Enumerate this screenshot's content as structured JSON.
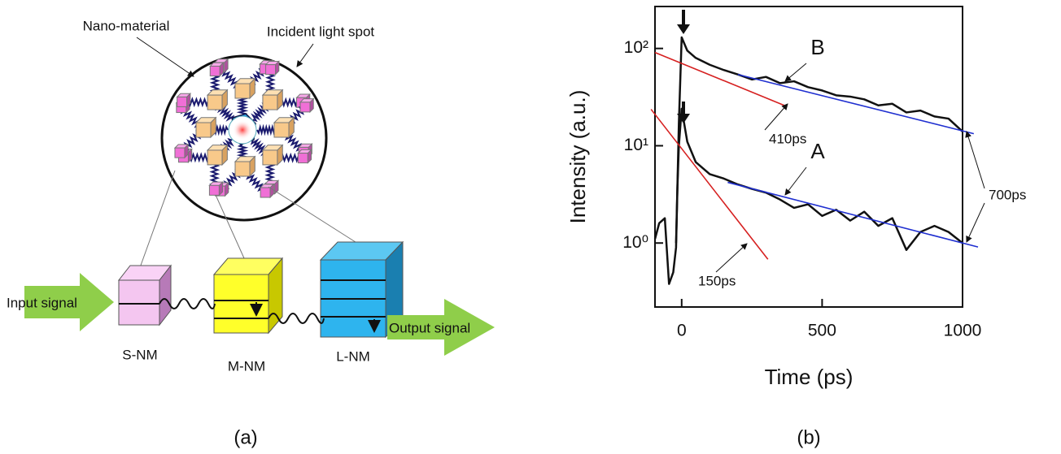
{
  "panel_a": {
    "nano_material": "Nano-material",
    "incident_light_spot": "Incident light spot",
    "input_signal": "Input signal",
    "output_signal": "Output signal",
    "s_nm": "S-NM",
    "m_nm": "M-NM",
    "l_nm": "L-NM",
    "label": "(a)"
  },
  "panel_b": {
    "label": "(b)"
  },
  "chart_data": {
    "type": "line",
    "x_label": "Time (ps)",
    "y_label": "Intensity (a.u.)",
    "log_y": true,
    "x": [
      -95,
      -80,
      -60,
      -45,
      -30,
      -20,
      -15,
      -10,
      0,
      20,
      50,
      100,
      150,
      200,
      250,
      300,
      350,
      400,
      450,
      500,
      550,
      600,
      650,
      700,
      750,
      800,
      850,
      900,
      950,
      1000
    ],
    "series": [
      {
        "name": "B",
        "color": "#111111",
        "values": [
          null,
          null,
          null,
          null,
          null,
          1.0,
          4,
          17,
          130,
          95,
          80,
          68,
          60,
          54,
          48,
          51,
          44,
          46,
          40,
          37,
          33,
          32,
          30,
          26,
          27,
          22,
          23,
          20,
          19,
          14
        ]
      },
      {
        "name": "A",
        "color": "#111111",
        "values": [
          1.1,
          1.6,
          1.8,
          0.38,
          0.5,
          0.9,
          3.8,
          10,
          24,
          11,
          6.8,
          5.1,
          4.6,
          4.0,
          3.6,
          3.3,
          2.8,
          2.3,
          2.5,
          1.9,
          2.2,
          1.7,
          2.1,
          1.5,
          1.8,
          0.85,
          1.3,
          1.5,
          1.3,
          1.0
        ]
      }
    ],
    "fit_lines": [
      {
        "color": "#d62020",
        "x": [
          -95,
          365
        ],
        "values": [
          91,
          26
        ]
      },
      {
        "color": "#1f2fd0",
        "x": [
          200,
          1040
        ],
        "values": [
          54,
          13.3
        ]
      },
      {
        "color": "#d62020",
        "x": [
          -109,
          307
        ],
        "values": [
          23.7,
          0.68
        ]
      },
      {
        "color": "#1f2fd0",
        "x": [
          164,
          1055
        ],
        "values": [
          4.2,
          0.91
        ]
      }
    ],
    "annotations": [
      "410ps",
      "150ps",
      "700ps"
    ],
    "xlim": [
      -95,
      1000
    ],
    "xticks": [
      0,
      500,
      1000
    ],
    "ylim": [
      0.22,
      270
    ],
    "yticks": [
      {
        "value": 1,
        "label": "10⁰"
      },
      {
        "value": 10,
        "label": "10¹"
      },
      {
        "value": 100,
        "label": "10²"
      }
    ]
  }
}
